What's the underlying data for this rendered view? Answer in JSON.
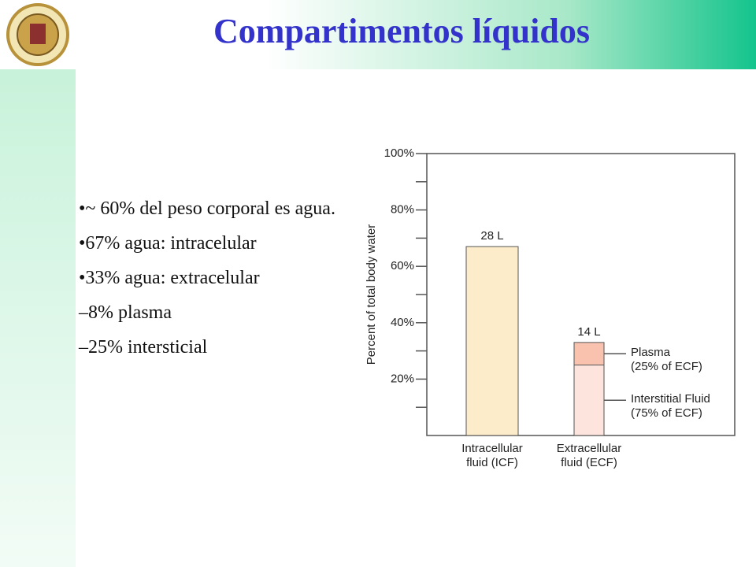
{
  "header": {
    "title": "Compartimentos líquidos"
  },
  "bullets": [
    "•~ 60% del peso corporal es agua.",
    "•67% agua: intracelular",
    "•33% agua: extracelular",
    "–8% plasma",
    "–25% intersticial"
  ],
  "chart_data": {
    "type": "stacked-bar",
    "y_label": "Percent of total body water",
    "categories": [
      "Intracellular\nfluid (ICF)",
      "Extracellular\nfluid (ECF)"
    ],
    "series": [
      {
        "color": "#fdecc9",
        "values": [
          67,
          null
        ]
      },
      {
        "name": "Interstitial Fluid\n(75% of ECF)",
        "color": "#fde4dc",
        "values": [
          null,
          25
        ]
      },
      {
        "name": "Plasma\n(25% of ECF)",
        "color": "#f8c2ae",
        "values": [
          null,
          8
        ]
      }
    ],
    "annotations": [
      "28 L",
      "14 L"
    ],
    "ylim": [
      0,
      100
    ],
    "yticks": [
      {
        "value": 20,
        "label": "20%"
      },
      {
        "value": 40,
        "label": "40%"
      },
      {
        "value": 60,
        "label": "60%"
      },
      {
        "value": 80,
        "label": "80%"
      },
      {
        "value": 100,
        "label": "100%"
      }
    ],
    "minor_yticks": [
      10,
      30,
      50,
      70,
      90
    ]
  }
}
